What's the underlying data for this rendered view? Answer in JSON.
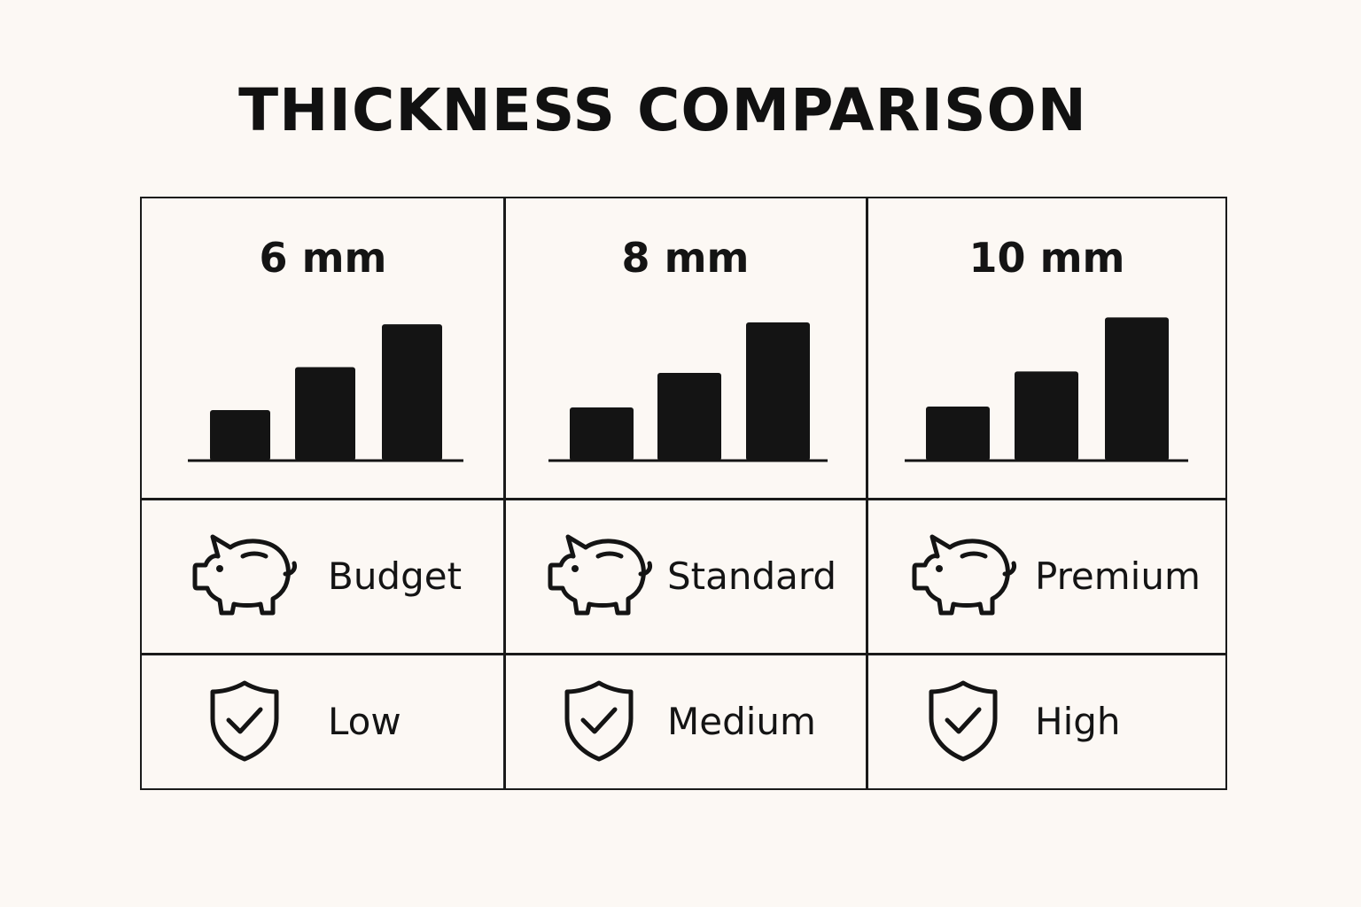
{
  "title": "THICKNESS COMPARISON",
  "columns": [
    {
      "thickness": "6 mm",
      "price_tier": "Budget",
      "protection": "Low",
      "bars": [
        1,
        1.85,
        2.7
      ]
    },
    {
      "thickness": "8 mm",
      "price_tier": "Standard",
      "protection": "Medium",
      "bars": [
        1,
        1.65,
        2.6
      ]
    },
    {
      "thickness": "10 mm",
      "price_tier": "Premium",
      "protection": "High",
      "bars": [
        1,
        1.65,
        2.65
      ]
    }
  ],
  "icons": {
    "price": "piggy-bank-icon",
    "protection": "shield-check-icon"
  },
  "colors": {
    "background": "#fcf8f4",
    "ink": "#141414"
  }
}
